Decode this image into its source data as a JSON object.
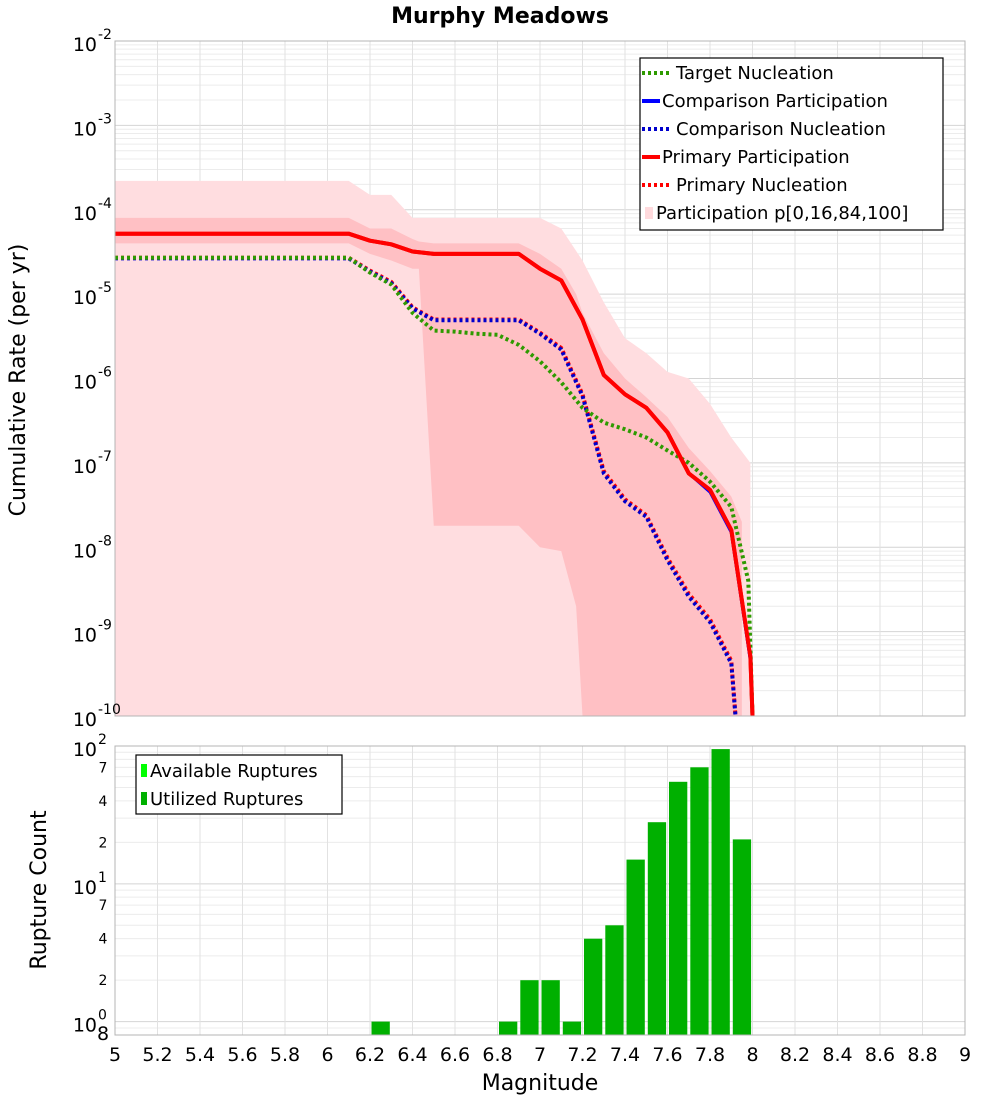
{
  "chart_data": [
    {
      "type": "line",
      "title": "Murphy Meadows",
      "xlabel": "",
      "ylabel": "Cumulative Rate (per yr)",
      "xlim": [
        5,
        9
      ],
      "ylim": [
        1e-10,
        0.01
      ],
      "yscale": "log",
      "y_tick_labels": [
        {
          "base": "10",
          "exp": "-2"
        },
        {
          "base": "10",
          "exp": "-3"
        },
        {
          "base": "10",
          "exp": "-4"
        },
        {
          "base": "10",
          "exp": "-5"
        },
        {
          "base": "10",
          "exp": "-6"
        },
        {
          "base": "10",
          "exp": "-7"
        },
        {
          "base": "10",
          "exp": "-8"
        },
        {
          "base": "10",
          "exp": "-9"
        },
        {
          "base": "10",
          "exp": "-10"
        }
      ],
      "legend_position": "top-right",
      "legend": [
        {
          "label": "Target Nucleation",
          "color": "#2e9a00",
          "style": "dotted"
        },
        {
          "label": "Comparison Participation",
          "color": "#0000ff",
          "style": "solid"
        },
        {
          "label": "Comparison Nucleation",
          "color": "#0000cc",
          "style": "dotted"
        },
        {
          "label": "Primary Participation",
          "color": "#ff0000",
          "style": "solid"
        },
        {
          "label": "Primary Nucleation",
          "color": "#ff0000",
          "style": "dotted"
        },
        {
          "label": "Participation p[0,16,84,100]",
          "color": "#ffdadd",
          "style": "area"
        }
      ],
      "bands": [
        {
          "name": "Participation p0-p100",
          "color": "#ffdde0",
          "x": [
            5.0,
            6.1,
            6.2,
            6.3,
            6.4,
            6.5,
            6.6,
            6.7,
            6.8,
            6.9,
            7.0,
            7.1,
            7.2,
            7.3,
            7.4,
            7.5,
            7.6,
            7.7,
            7.8,
            7.9,
            7.99,
            7.99
          ],
          "upper": [
            0.00022,
            0.00022,
            0.00015,
            0.00015,
            8e-05,
            8e-05,
            8e-05,
            8e-05,
            8e-05,
            8e-05,
            8e-05,
            6e-05,
            2.5e-05,
            8e-06,
            3e-06,
            2e-06,
            1.2e-06,
            1e-06,
            5e-07,
            2e-07,
            1e-07,
            2.8e-07
          ],
          "lower": [
            1e-10,
            1e-10,
            1e-10,
            1e-10,
            1e-10,
            1e-10,
            1e-10,
            1e-10,
            1e-10,
            1e-10,
            1e-10,
            1e-10,
            1e-10,
            1e-10,
            1e-10,
            1e-10,
            1e-10,
            1e-10,
            1e-10,
            1e-10,
            1e-10,
            1e-10
          ]
        },
        {
          "name": "Participation p16-p84",
          "color": "#ffc0c4",
          "x": [
            5.0,
            6.1,
            6.2,
            6.3,
            6.4,
            6.43,
            6.5,
            6.6,
            6.7,
            6.8,
            6.9,
            7.0,
            7.1,
            7.17,
            7.2,
            7.3,
            7.4,
            7.5,
            7.6,
            7.7,
            7.8,
            7.9,
            7.95
          ],
          "upper": [
            8e-05,
            8e-05,
            6e-05,
            6e-05,
            4.5e-05,
            4.2e-05,
            4e-05,
            4e-05,
            4e-05,
            4e-05,
            4e-05,
            3e-05,
            2e-05,
            1e-05,
            6e-06,
            2e-06,
            1e-06,
            6e-07,
            3.5e-07,
            1.5e-07,
            8e-08,
            4e-08,
            2e-08
          ],
          "lower": [
            4e-05,
            4e-05,
            3e-05,
            2.5e-05,
            2e-05,
            2e-05,
            1.8e-08,
            1.8e-08,
            1.8e-08,
            1.8e-08,
            1.8e-08,
            1e-08,
            9e-09,
            2e-09,
            1e-10,
            1e-10,
            1e-10,
            1e-10,
            1e-10,
            1e-10,
            1e-10,
            1e-10,
            1e-10
          ]
        }
      ],
      "series": [
        {
          "name": "Primary Participation",
          "color": "#ff0000",
          "style": "solid",
          "x": [
            5.0,
            6.1,
            6.2,
            6.3,
            6.4,
            6.5,
            6.6,
            6.7,
            6.8,
            6.9,
            7.0,
            7.1,
            7.2,
            7.3,
            7.4,
            7.5,
            7.6,
            7.7,
            7.8,
            7.9,
            7.99,
            8.0
          ],
          "y": [
            5.2e-05,
            5.2e-05,
            4.3e-05,
            3.9e-05,
            3.2e-05,
            3e-05,
            3e-05,
            3e-05,
            3e-05,
            3e-05,
            2e-05,
            1.45e-05,
            5e-06,
            1.1e-06,
            6.5e-07,
            4.5e-07,
            2.3e-07,
            7.5e-08,
            4.8e-08,
            1.6e-08,
            5e-10,
            1e-10
          ]
        },
        {
          "name": "Comparison Participation",
          "color": "#0000ff",
          "style": "solid",
          "x": [
            5.0,
            6.1,
            6.2,
            6.3,
            6.4,
            6.5,
            6.6,
            6.7,
            6.8,
            6.9,
            7.0,
            7.1,
            7.2,
            7.3,
            7.4,
            7.5,
            7.6,
            7.7,
            7.8,
            7.9,
            7.99,
            8.0
          ],
          "y": [
            5.2e-05,
            5.2e-05,
            4.3e-05,
            3.9e-05,
            3.2e-05,
            3e-05,
            3e-05,
            3e-05,
            3e-05,
            3e-05,
            2e-05,
            1.45e-05,
            5e-06,
            1.1e-06,
            6.5e-07,
            4.5e-07,
            2.3e-07,
            7.5e-08,
            4.5e-08,
            1.5e-08,
            4.5e-10,
            1e-10
          ]
        },
        {
          "name": "Primary Nucleation",
          "color": "#ff0000",
          "style": "dotted",
          "x": [
            5.0,
            6.1,
            6.2,
            6.3,
            6.4,
            6.5,
            6.6,
            6.7,
            6.8,
            6.9,
            7.0,
            7.1,
            7.2,
            7.3,
            7.4,
            7.5,
            7.6,
            7.7,
            7.8,
            7.9,
            7.92
          ],
          "y": [
            2.7e-05,
            2.7e-05,
            1.9e-05,
            1.4e-05,
            7e-06,
            5e-06,
            5e-06,
            5e-06,
            5e-06,
            5e-06,
            3.5e-06,
            2.3e-06,
            6.5e-07,
            8e-08,
            3.7e-08,
            2.4e-08,
            7.5e-09,
            2.8e-09,
            1.4e-09,
            4.5e-10,
            1e-10
          ]
        },
        {
          "name": "Comparison Nucleation",
          "color": "#0000cc",
          "style": "dotted",
          "x": [
            5.0,
            6.1,
            6.2,
            6.3,
            6.4,
            6.5,
            6.6,
            6.7,
            6.8,
            6.9,
            7.0,
            7.1,
            7.2,
            7.3,
            7.4,
            7.5,
            7.6,
            7.7,
            7.8,
            7.9,
            7.92
          ],
          "y": [
            2.65e-05,
            2.65e-05,
            1.85e-05,
            1.35e-05,
            6.8e-06,
            4.9e-06,
            4.9e-06,
            4.9e-06,
            4.9e-06,
            4.9e-06,
            3.4e-06,
            2.2e-06,
            6.2e-07,
            7.5e-08,
            3.5e-08,
            2.3e-08,
            7e-09,
            2.6e-09,
            1.3e-09,
            4.2e-10,
            1e-10
          ]
        },
        {
          "name": "Target Nucleation",
          "color": "#2e9a00",
          "style": "dotted",
          "x": [
            5.0,
            6.1,
            6.2,
            6.3,
            6.4,
            6.5,
            6.6,
            6.7,
            6.8,
            6.9,
            7.0,
            7.1,
            7.2,
            7.3,
            7.4,
            7.5,
            7.6,
            7.7,
            7.8,
            7.9,
            7.98,
            8.0
          ],
          "y": [
            2.7e-05,
            2.7e-05,
            1.8e-05,
            1.3e-05,
            6e-06,
            3.7e-06,
            3.6e-06,
            3.4e-06,
            3.3e-06,
            2.5e-06,
            1.6e-06,
            9e-07,
            4.5e-07,
            3e-07,
            2.5e-07,
            2e-07,
            1.4e-07,
            1e-07,
            6e-08,
            3e-08,
            4e-09,
            1e-10
          ]
        }
      ]
    },
    {
      "type": "bar",
      "title": "",
      "xlabel": "Magnitude",
      "ylabel": "Rupture Count",
      "xlim": [
        5,
        9
      ],
      "ylim": [
        0.8,
        100
      ],
      "yscale": "log",
      "x_ticks": [
        "5",
        "5.2",
        "5.4",
        "5.6",
        "5.8",
        "6",
        "6.2",
        "6.4",
        "6.6",
        "6.8",
        "7",
        "7.2",
        "7.4",
        "7.6",
        "7.8",
        "8",
        "8.2",
        "8.4",
        "8.6",
        "8.8",
        "9"
      ],
      "y_major_labels": [
        {
          "base": "10",
          "exp": "2",
          "value": 100
        },
        {
          "base": "10",
          "exp": "1",
          "value": 10
        },
        {
          "base": "10",
          "exp": "0",
          "value": 1
        }
      ],
      "y_minor_labels": [
        {
          "label": "7",
          "value": 70
        },
        {
          "label": "4",
          "value": 40
        },
        {
          "label": "2",
          "value": 20
        },
        {
          "label": "7",
          "value": 7
        },
        {
          "label": "4",
          "value": 4
        },
        {
          "label": "2",
          "value": 2
        },
        {
          "label": "8",
          "value": 0.8
        }
      ],
      "legend_position": "top-left",
      "legend": [
        {
          "label": "Available Ruptures",
          "color": "#00ff00"
        },
        {
          "label": "Utilized Ruptures",
          "color": "#00b000"
        }
      ],
      "bar_width": 0.1,
      "series": [
        {
          "name": "Utilized Ruptures",
          "color": "#00b000",
          "x": [
            6.25,
            6.85,
            6.95,
            7.05,
            7.15,
            7.25,
            7.35,
            7.45,
            7.55,
            7.65,
            7.75,
            7.85,
            7.95
          ],
          "values": [
            1,
            1,
            2,
            2,
            1,
            4,
            5,
            15,
            28,
            55,
            70,
            95,
            21
          ]
        }
      ]
    }
  ]
}
